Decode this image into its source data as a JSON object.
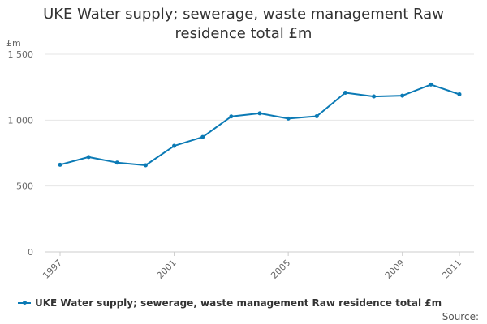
{
  "chart_data": {
    "type": "line",
    "title_lines": [
      "UKE Water supply; sewerage, waste management Raw",
      "residence total £m"
    ],
    "ylabel": "£m",
    "xlabel": "",
    "x": [
      1997,
      1998,
      1999,
      2000,
      2001,
      2002,
      2003,
      2004,
      2005,
      2006,
      2007,
      2008,
      2009,
      2010,
      2011
    ],
    "x_tick_labels": [
      "1997",
      "2001",
      "2005",
      "2009",
      "2011"
    ],
    "y_tick_labels": [
      "0",
      "500",
      "1 000",
      "1 500"
    ],
    "ylim": [
      0,
      1500
    ],
    "grid": true,
    "series": [
      {
        "name": "UKE Water supply; sewerage, waste management Raw residence total £m",
        "color": "#0b7ab5",
        "values": [
          662,
          720,
          678,
          658,
          805,
          872,
          1028,
          1052,
          1012,
          1030,
          1208,
          1180,
          1186,
          1270,
          1196
        ]
      }
    ],
    "legend_position": "bottom-left",
    "source_label": "Source:"
  }
}
